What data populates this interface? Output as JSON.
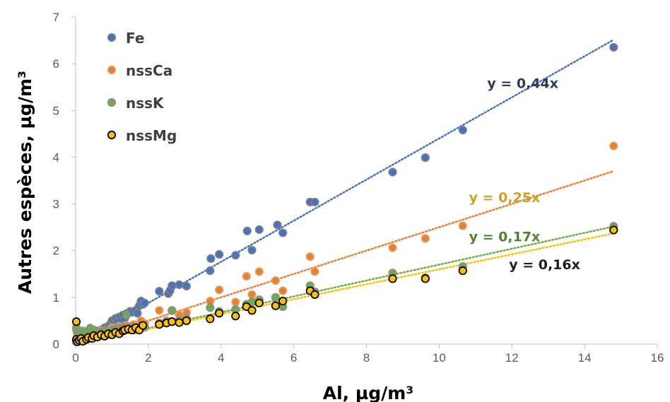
{
  "chart_data": {
    "type": "scatter",
    "title": "",
    "xlabel": "Al, µg/m³",
    "ylabel": "Autres espèces, µg/m³",
    "xlim": [
      0,
      16
    ],
    "ylim": [
      0,
      7
    ],
    "x_ticks": [
      0,
      2,
      4,
      6,
      8,
      10,
      12,
      14,
      16
    ],
    "y_ticks": [
      0,
      1,
      2,
      3,
      4,
      5,
      6,
      7
    ],
    "grid": false,
    "legend_position": "top-left",
    "series": [
      {
        "name": "Fe",
        "color": "#4472C4",
        "edge_color": "#7F7F7F",
        "trend_slope": 0.44,
        "trend_label": "y = 0,44x",
        "trend_label_color": "#2F3B55",
        "points": [
          [
            0.02,
            0.05
          ],
          [
            0.05,
            0.1
          ],
          [
            0.1,
            0.12
          ],
          [
            0.15,
            0.08
          ],
          [
            0.2,
            0.15
          ],
          [
            0.3,
            0.18
          ],
          [
            0.35,
            0.12
          ],
          [
            0.45,
            0.22
          ],
          [
            0.5,
            0.2
          ],
          [
            0.6,
            0.28
          ],
          [
            0.7,
            0.3
          ],
          [
            0.75,
            0.25
          ],
          [
            0.8,
            0.35
          ],
          [
            0.9,
            0.38
          ],
          [
            0.95,
            0.42
          ],
          [
            1.0,
            0.5
          ],
          [
            1.05,
            0.45
          ],
          [
            1.1,
            0.55
          ],
          [
            1.15,
            0.5
          ],
          [
            1.2,
            0.58
          ],
          [
            1.25,
            0.52
          ],
          [
            1.3,
            0.62
          ],
          [
            1.35,
            0.55
          ],
          [
            1.4,
            0.65
          ],
          [
            1.5,
            0.7
          ],
          [
            1.55,
            0.68
          ],
          [
            1.65,
            0.72
          ],
          [
            1.7,
            0.66
          ],
          [
            1.75,
            0.82
          ],
          [
            1.8,
            0.92
          ],
          [
            1.85,
            0.85
          ],
          [
            1.9,
            0.88
          ],
          [
            2.3,
            1.13
          ],
          [
            2.55,
            1.08
          ],
          [
            2.6,
            1.15
          ],
          [
            2.65,
            1.25
          ],
          [
            2.85,
            1.27
          ],
          [
            3.05,
            1.24
          ],
          [
            3.7,
            1.57
          ],
          [
            3.72,
            1.83
          ],
          [
            3.95,
            1.92
          ],
          [
            4.4,
            1.9
          ],
          [
            4.72,
            2.42
          ],
          [
            4.85,
            2.01
          ],
          [
            5.05,
            2.45
          ],
          [
            5.55,
            2.55
          ],
          [
            5.7,
            2.38
          ],
          [
            6.45,
            3.04
          ],
          [
            6.58,
            3.04
          ],
          [
            8.72,
            3.68
          ],
          [
            9.62,
            3.99
          ],
          [
            10.65,
            4.58
          ],
          [
            14.8,
            6.35
          ]
        ]
      },
      {
        "name": "nssCa",
        "color": "#ED7D31",
        "edge_color": "#D9A566",
        "trend_slope": 0.25,
        "trend_label": "y = 0,25x",
        "trend_label_color": "#C9A227",
        "points": [
          [
            0.02,
            0.3
          ],
          [
            0.05,
            0.2
          ],
          [
            0.1,
            0.15
          ],
          [
            0.2,
            0.22
          ],
          [
            0.3,
            0.18
          ],
          [
            0.4,
            0.25
          ],
          [
            0.5,
            0.2
          ],
          [
            0.6,
            0.22
          ],
          [
            0.7,
            0.28
          ],
          [
            0.8,
            0.3
          ],
          [
            0.9,
            0.25
          ],
          [
            1.0,
            0.35
          ],
          [
            1.1,
            0.3
          ],
          [
            1.2,
            0.38
          ],
          [
            1.3,
            0.34
          ],
          [
            1.4,
            0.4
          ],
          [
            1.5,
            0.36
          ],
          [
            1.6,
            0.42
          ],
          [
            1.7,
            0.4
          ],
          [
            1.8,
            0.5
          ],
          [
            1.9,
            0.44
          ],
          [
            2.3,
            0.72
          ],
          [
            2.5,
            0.5
          ],
          [
            2.65,
            0.71
          ],
          [
            2.85,
            0.62
          ],
          [
            3.05,
            0.68
          ],
          [
            3.7,
            0.92
          ],
          [
            3.95,
            1.16
          ],
          [
            4.4,
            0.9
          ],
          [
            4.7,
            1.45
          ],
          [
            4.85,
            1.06
          ],
          [
            5.05,
            1.55
          ],
          [
            5.5,
            1.36
          ],
          [
            5.7,
            1.14
          ],
          [
            6.45,
            1.87
          ],
          [
            6.58,
            1.55
          ],
          [
            8.72,
            2.06
          ],
          [
            9.62,
            2.26
          ],
          [
            10.65,
            2.53
          ],
          [
            14.8,
            4.24
          ]
        ]
      },
      {
        "name": "nssK",
        "color": "#70AD47",
        "edge_color": "#8C8C8C",
        "trend_slope": 0.17,
        "trend_label": "y = 0,17x",
        "trend_label_color": "#548235",
        "points": [
          [
            0.02,
            0.35
          ],
          [
            0.05,
            0.25
          ],
          [
            0.1,
            0.2
          ],
          [
            0.2,
            0.28
          ],
          [
            0.3,
            0.22
          ],
          [
            0.4,
            0.34
          ],
          [
            0.5,
            0.3
          ],
          [
            0.6,
            0.26
          ],
          [
            0.7,
            0.24
          ],
          [
            0.8,
            0.3
          ],
          [
            0.9,
            0.22
          ],
          [
            1.0,
            0.28
          ],
          [
            1.1,
            0.32
          ],
          [
            1.2,
            0.3
          ],
          [
            1.3,
            0.35
          ],
          [
            1.4,
            0.62
          ],
          [
            1.5,
            0.36
          ],
          [
            1.6,
            0.3
          ],
          [
            1.7,
            0.34
          ],
          [
            1.8,
            0.4
          ],
          [
            1.9,
            0.36
          ],
          [
            2.3,
            0.45
          ],
          [
            2.5,
            0.48
          ],
          [
            2.65,
            0.72
          ],
          [
            2.85,
            0.5
          ],
          [
            3.05,
            0.55
          ],
          [
            3.7,
            0.78
          ],
          [
            3.95,
            0.7
          ],
          [
            4.4,
            0.74
          ],
          [
            4.7,
            0.85
          ],
          [
            4.85,
            0.9
          ],
          [
            5.05,
            0.95
          ],
          [
            5.5,
            1.0
          ],
          [
            5.7,
            0.8
          ],
          [
            6.45,
            1.25
          ],
          [
            6.58,
            1.12
          ],
          [
            8.72,
            1.52
          ],
          [
            9.62,
            1.42
          ],
          [
            10.65,
            1.66
          ],
          [
            14.8,
            2.52
          ]
        ]
      },
      {
        "name": "nssMg",
        "color": "#FFC000",
        "edge_color": "#000000",
        "trend_slope": 0.16,
        "trend_label": "y = 0,16x",
        "trend_label_color": "#1F1F1F",
        "points": [
          [
            0.02,
            0.48
          ],
          [
            0.02,
            0.1
          ],
          [
            0.05,
            0.05
          ],
          [
            0.1,
            0.08
          ],
          [
            0.15,
            0.12
          ],
          [
            0.2,
            0.06
          ],
          [
            0.3,
            0.1
          ],
          [
            0.35,
            0.14
          ],
          [
            0.45,
            0.12
          ],
          [
            0.5,
            0.18
          ],
          [
            0.6,
            0.15
          ],
          [
            0.7,
            0.2
          ],
          [
            0.8,
            0.17
          ],
          [
            0.9,
            0.22
          ],
          [
            1.0,
            0.2
          ],
          [
            1.1,
            0.25
          ],
          [
            1.2,
            0.22
          ],
          [
            1.3,
            0.28
          ],
          [
            1.35,
            0.3
          ],
          [
            1.45,
            0.32
          ],
          [
            1.55,
            0.3
          ],
          [
            1.65,
            0.35
          ],
          [
            1.75,
            0.3
          ],
          [
            1.85,
            0.4
          ],
          [
            2.3,
            0.42
          ],
          [
            2.5,
            0.45
          ],
          [
            2.65,
            0.48
          ],
          [
            2.85,
            0.46
          ],
          [
            3.05,
            0.5
          ],
          [
            3.7,
            0.54
          ],
          [
            3.95,
            0.66
          ],
          [
            4.4,
            0.6
          ],
          [
            4.7,
            0.8
          ],
          [
            4.85,
            0.72
          ],
          [
            5.05,
            0.88
          ],
          [
            5.5,
            0.82
          ],
          [
            5.7,
            0.92
          ],
          [
            6.45,
            1.14
          ],
          [
            6.58,
            1.06
          ],
          [
            8.72,
            1.4
          ],
          [
            9.62,
            1.4
          ],
          [
            10.65,
            1.57
          ],
          [
            14.8,
            2.44
          ]
        ]
      }
    ]
  }
}
